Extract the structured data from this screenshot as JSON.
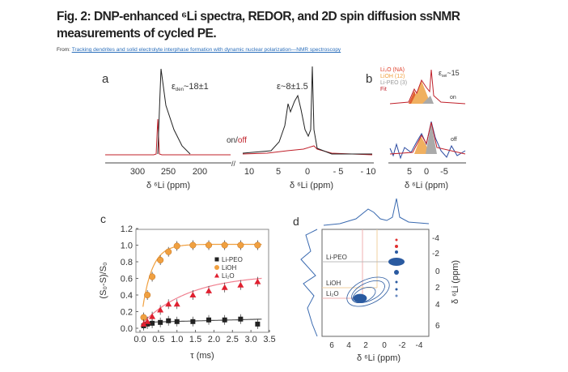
{
  "figure": {
    "title": "Fig. 2: DNP-enhanced ⁶Li spectra, REDOR, and 2D spin diffusion ssNMR measurements of cycled PE.",
    "from_label": "From:",
    "source_link": "Tracking dendrites and solid electrolyte interphase formation with dynamic nuclear polarization—NMR spectroscopy"
  },
  "panel_a": {
    "label": "a",
    "eps_den": "ε",
    "eps_den_sub": "den",
    "eps_den_val": "~18±1",
    "eps2": "ε~8±1.5",
    "on": "on",
    "slash": "/",
    "off": "off",
    "ticks_left": [
      "300",
      "250",
      "200"
    ],
    "ticks_right": [
      "10",
      "5",
      "0",
      "- 5",
      "- 10"
    ],
    "xlabel": "δ ⁶Li (ppm)",
    "colors": {
      "on": "#222222",
      "off": "#c0202a"
    }
  },
  "panel_b": {
    "label": "b",
    "legend": [
      "Li₂O (NA)",
      "LiOH (12)",
      "Li-PEO (3)",
      "Fit"
    ],
    "legend_colors": [
      "#e0402a",
      "#f0a040",
      "#999999",
      "#c0202a"
    ],
    "eps": "ε",
    "eps_sub": "sei",
    "eps_val": "~15",
    "on": "on",
    "off": "off",
    "ticks": [
      "5",
      "0",
      "-5"
    ],
    "xlabel": "δ ⁶Li (ppm)"
  },
  "panel_c": {
    "label": "c"
  },
  "chart_data": {
    "type": "scatter",
    "xlabel": "τ (ms)",
    "ylabel": "(S₀-S)/S₀",
    "xlim": [
      0,
      3.5
    ],
    "ylim": [
      0,
      1.2
    ],
    "xticks": [
      "0.0",
      "0.5",
      "1.0",
      "1.5",
      "2.0",
      "2.5",
      "3.0",
      "3.5"
    ],
    "yticks": [
      "0.0",
      "0.2",
      "0.4",
      "0.6",
      "0.8",
      "1.0",
      "1.2"
    ],
    "legend_placement": "center-right",
    "x": [
      0.1,
      0.2,
      0.33,
      0.55,
      0.77,
      1.0,
      1.43,
      1.86,
      2.29,
      2.72,
      3.18
    ],
    "series": [
      {
        "name": "Li-PEO",
        "marker": "square",
        "color": "#222222",
        "values": [
          0.03,
          0.05,
          0.06,
          0.07,
          0.09,
          0.08,
          0.08,
          0.1,
          0.1,
          0.11,
          0.05
        ]
      },
      {
        "name": "LiOH",
        "marker": "circle",
        "color": "#f0a040",
        "values": [
          0.13,
          0.4,
          0.62,
          0.82,
          0.92,
          0.99,
          1.0,
          1.0,
          1.0,
          1.0,
          1.0
        ]
      },
      {
        "name": "Li₂O",
        "marker": "triangle",
        "color": "#e02030",
        "values": [
          0.05,
          0.08,
          0.14,
          0.22,
          0.29,
          0.29,
          0.4,
          0.45,
          0.49,
          0.52,
          0.56
        ]
      }
    ]
  },
  "panel_d": {
    "label": "d",
    "labels": [
      "Li-PEO",
      "LiOH",
      "Li₂O"
    ],
    "xticks": [
      "6",
      "4",
      "2",
      "0",
      "-2",
      "-4"
    ],
    "yticks": [
      "-4",
      "-2",
      "0",
      "2",
      "4",
      "6"
    ],
    "xlabel": "δ ⁶Li (ppm)",
    "ylabel": "δ ⁶Li (ppm)",
    "color": "#2a5aa0"
  }
}
